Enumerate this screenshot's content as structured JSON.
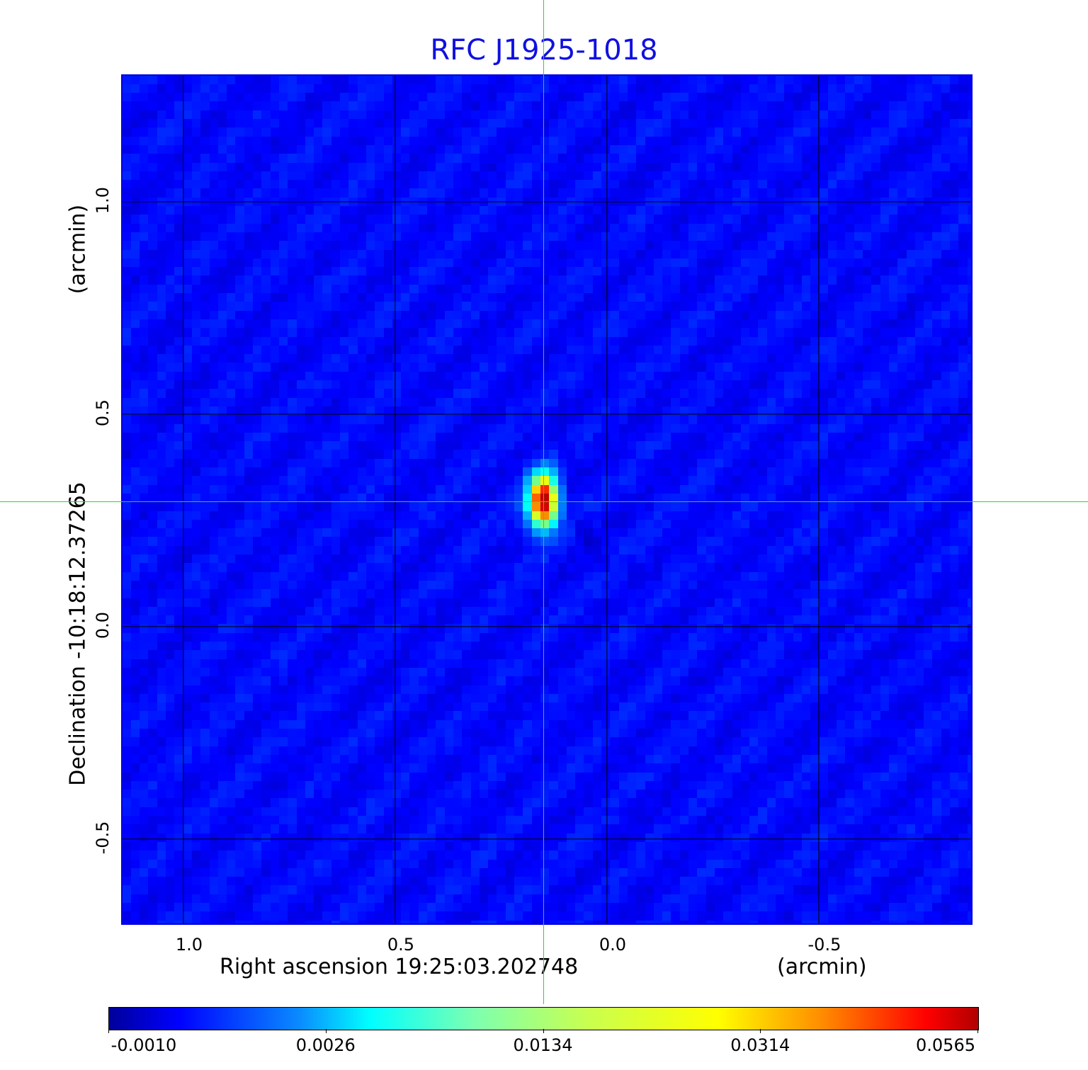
{
  "chart_data": {
    "type": "heatmap",
    "title": "RFC J1925-1018",
    "xlabel": "Right ascension  19:25:03.202748",
    "xunit": "(arcmin)",
    "ylabel": "Declination  -10:18:12.37265",
    "yunit": "(arcmin)",
    "xlim": [
      1.147,
      -0.863
    ],
    "ylim": [
      -0.702,
      1.3
    ],
    "xticks": [
      "1.0",
      "0.5",
      "0.0",
      "-0.5"
    ],
    "xtick_values": [
      1.0,
      0.5,
      0.0,
      -0.5
    ],
    "yticks": [
      "1.0",
      "0.5",
      "0.0",
      "-0.5"
    ],
    "ytick_values": [
      1.0,
      0.5,
      0.0,
      -0.5
    ],
    "grid": true,
    "colormap": "jet",
    "colorbar": {
      "ticks": [
        "-0.0010",
        "0.0026",
        "0.0134",
        "0.0314",
        "0.0565"
      ],
      "min": -0.001,
      "max": 0.0565
    },
    "peak": {
      "x": 0.15,
      "y": 0.295,
      "value": 0.0565
    },
    "crosshair": {
      "x": 0.15,
      "y": 0.295
    },
    "crosshair_color": "#22dd22",
    "title_color": "#1010e0"
  }
}
